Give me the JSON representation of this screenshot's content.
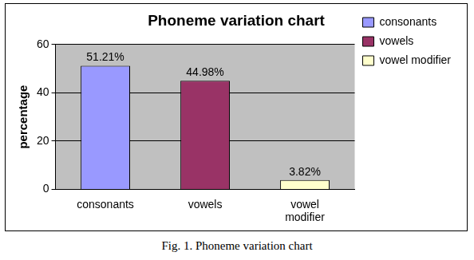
{
  "chart_data": {
    "type": "bar",
    "title": "Phoneme variation chart",
    "y_label": "percentage",
    "categories": [
      "consonants",
      "vowels",
      "vowel modifier"
    ],
    "values": [
      51.21,
      44.98,
      3.82
    ],
    "value_labels": [
      "51.21%",
      "44.98%",
      "3.82%"
    ],
    "colors": [
      "#9999ff",
      "#993366",
      "#ffffcc"
    ],
    "ylim": [
      0,
      60
    ],
    "yticks": [
      0,
      20,
      40,
      60
    ],
    "grid": true,
    "legend": "right",
    "data_labels": true
  },
  "caption": "Fig. 1. Phoneme variation chart"
}
